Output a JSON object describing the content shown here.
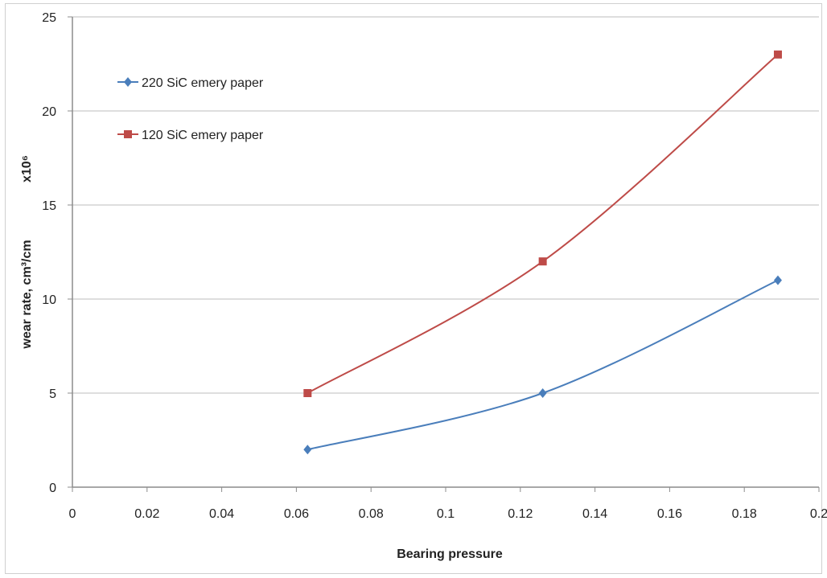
{
  "chart_data": {
    "type": "line",
    "xlabel": "Bearing pressure",
    "ylabel": "wear rate, cm³/cm",
    "ylabel_multiplier": "x10⁶",
    "xlim": [
      0,
      0.2
    ],
    "ylim": [
      0,
      25
    ],
    "x_ticks": [
      "0",
      "0.02",
      "0.04",
      "0.06",
      "0.08",
      "0.1",
      "0.12",
      "0.14",
      "0.16",
      "0.18",
      "0.2"
    ],
    "y_ticks": [
      "0",
      "5",
      "10",
      "15",
      "20",
      "25"
    ],
    "grid": "horizontal",
    "legend_position": "top-left",
    "series": [
      {
        "name": "220 SiC emery paper",
        "color": "#4a7ebb",
        "marker": "diamond",
        "x": [
          0.063,
          0.126,
          0.189
        ],
        "y": [
          2,
          5,
          11
        ]
      },
      {
        "name": "120 SiC emery paper",
        "color": "#be4b48",
        "marker": "square",
        "x": [
          0.063,
          0.126,
          0.189
        ],
        "y": [
          5,
          12,
          23
        ]
      }
    ]
  }
}
